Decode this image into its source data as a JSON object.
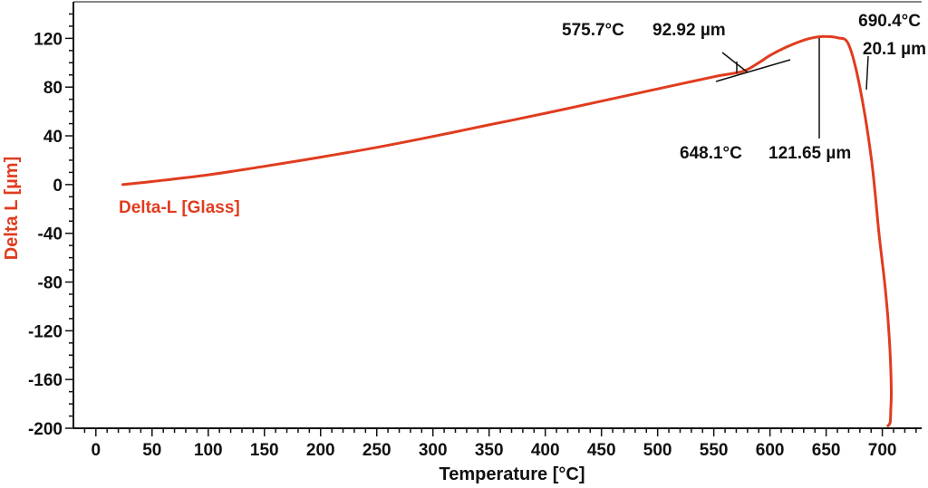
{
  "chart_data": {
    "type": "line",
    "title": "",
    "xlabel": "Temperature [°C]",
    "ylabel": "Delta L [µm]",
    "xlim": [
      -20,
      735
    ],
    "ylim": [
      -200,
      150
    ],
    "x_ticks": [
      0,
      50,
      100,
      150,
      200,
      250,
      300,
      350,
      400,
      450,
      500,
      550,
      600,
      650,
      700
    ],
    "x_tick_labels": [
      "0",
      "50",
      "100",
      "150",
      "200",
      "250",
      "300",
      "350",
      "400",
      "450",
      "500",
      "550",
      "600",
      "650",
      "700"
    ],
    "y_ticks": [
      120,
      80,
      40,
      0,
      -40,
      -80,
      -120,
      -160,
      -200
    ],
    "y_tick_labels": [
      "120",
      "80",
      "40",
      "0",
      "-40",
      "-80",
      "-120",
      "-160",
      "-200"
    ],
    "grid": false,
    "colors": {
      "series": "#e03c1f",
      "axis": "#111111"
    },
    "series": [
      {
        "name": "Delta-L [Glass]",
        "x": [
          24,
          50,
          100,
          150,
          200,
          250,
          300,
          350,
          400,
          450,
          500,
          550,
          575.7,
          590,
          600,
          615,
          630,
          640,
          648.1,
          660,
          670,
          680,
          690.4,
          697,
          702,
          705,
          707,
          708,
          707.5,
          707,
          705
        ],
        "y": [
          0,
          2.5,
          8,
          15,
          22.5,
          30.5,
          39.5,
          49,
          58.5,
          68.5,
          78.5,
          88.5,
          92.92,
          100,
          106,
          113,
          118.5,
          120.8,
          121.65,
          120.5,
          115,
          80,
          20.1,
          -40,
          -80,
          -110,
          -140,
          -170,
          -185,
          -195,
          -198
        ]
      }
    ],
    "annotations": {
      "onset_temp": "575.7°C",
      "onset_value": "92.92 µm",
      "peak_temp": "648.1°C",
      "peak_value": "121.65 µm",
      "end_temp": "690.4°C",
      "end_value": "20.1 µm"
    }
  }
}
